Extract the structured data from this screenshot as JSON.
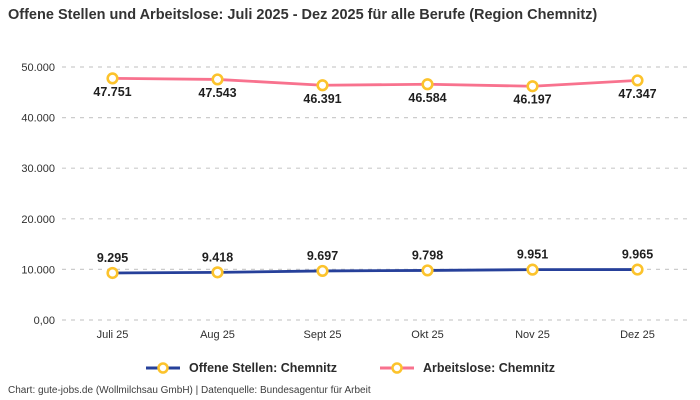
{
  "title": "Offene Stellen und Arbeitslose: Juli 2025 - Dez 2025 für alle Berufe (Region Chemnitz)",
  "footer": "Chart: gute-jobs.de (Wollmilchsau GmbH) | Datenquelle: Bundesagentur für Arbeit",
  "colors": {
    "offene_stellen": "#26409A",
    "arbeitslose": "#F8728E",
    "marker_ring": "#FCC32C",
    "marker_fill": "#FFFFFF",
    "gridline": "#CCCCCC",
    "title_text": "#333333",
    "axis_text": "#2F2F2F",
    "data_label_text": "#1F1F1F"
  },
  "chart_data": {
    "type": "line",
    "categories": [
      "Juli 25",
      "Aug 25",
      "Sept 25",
      "Okt 25",
      "Nov 25",
      "Dez 25"
    ],
    "series": [
      {
        "name": "Offene Stellen: Chemnitz",
        "values": [
          9295,
          9418,
          9697,
          9798,
          9951,
          9965
        ],
        "labels": [
          "9.295",
          "9.418",
          "9.697",
          "9.798",
          "9.951",
          "9.965"
        ],
        "color": "#26409A",
        "label_position": "above"
      },
      {
        "name": "Arbeitslose: Chemnitz",
        "values": [
          47751,
          47543,
          46391,
          46584,
          46197,
          47347
        ],
        "labels": [
          "47.751",
          "47.543",
          "46.391",
          "46.584",
          "46.197",
          "47.347"
        ],
        "color": "#F8728E",
        "label_position": "below"
      }
    ],
    "y_ticks": [
      "0,00",
      "10.000",
      "20.000",
      "30.000",
      "40.000",
      "50.000"
    ],
    "y_tick_values": [
      0,
      10000,
      20000,
      30000,
      40000,
      50000
    ],
    "ylim": [
      0,
      50000
    ],
    "grid": true,
    "legend_position": "bottom"
  }
}
